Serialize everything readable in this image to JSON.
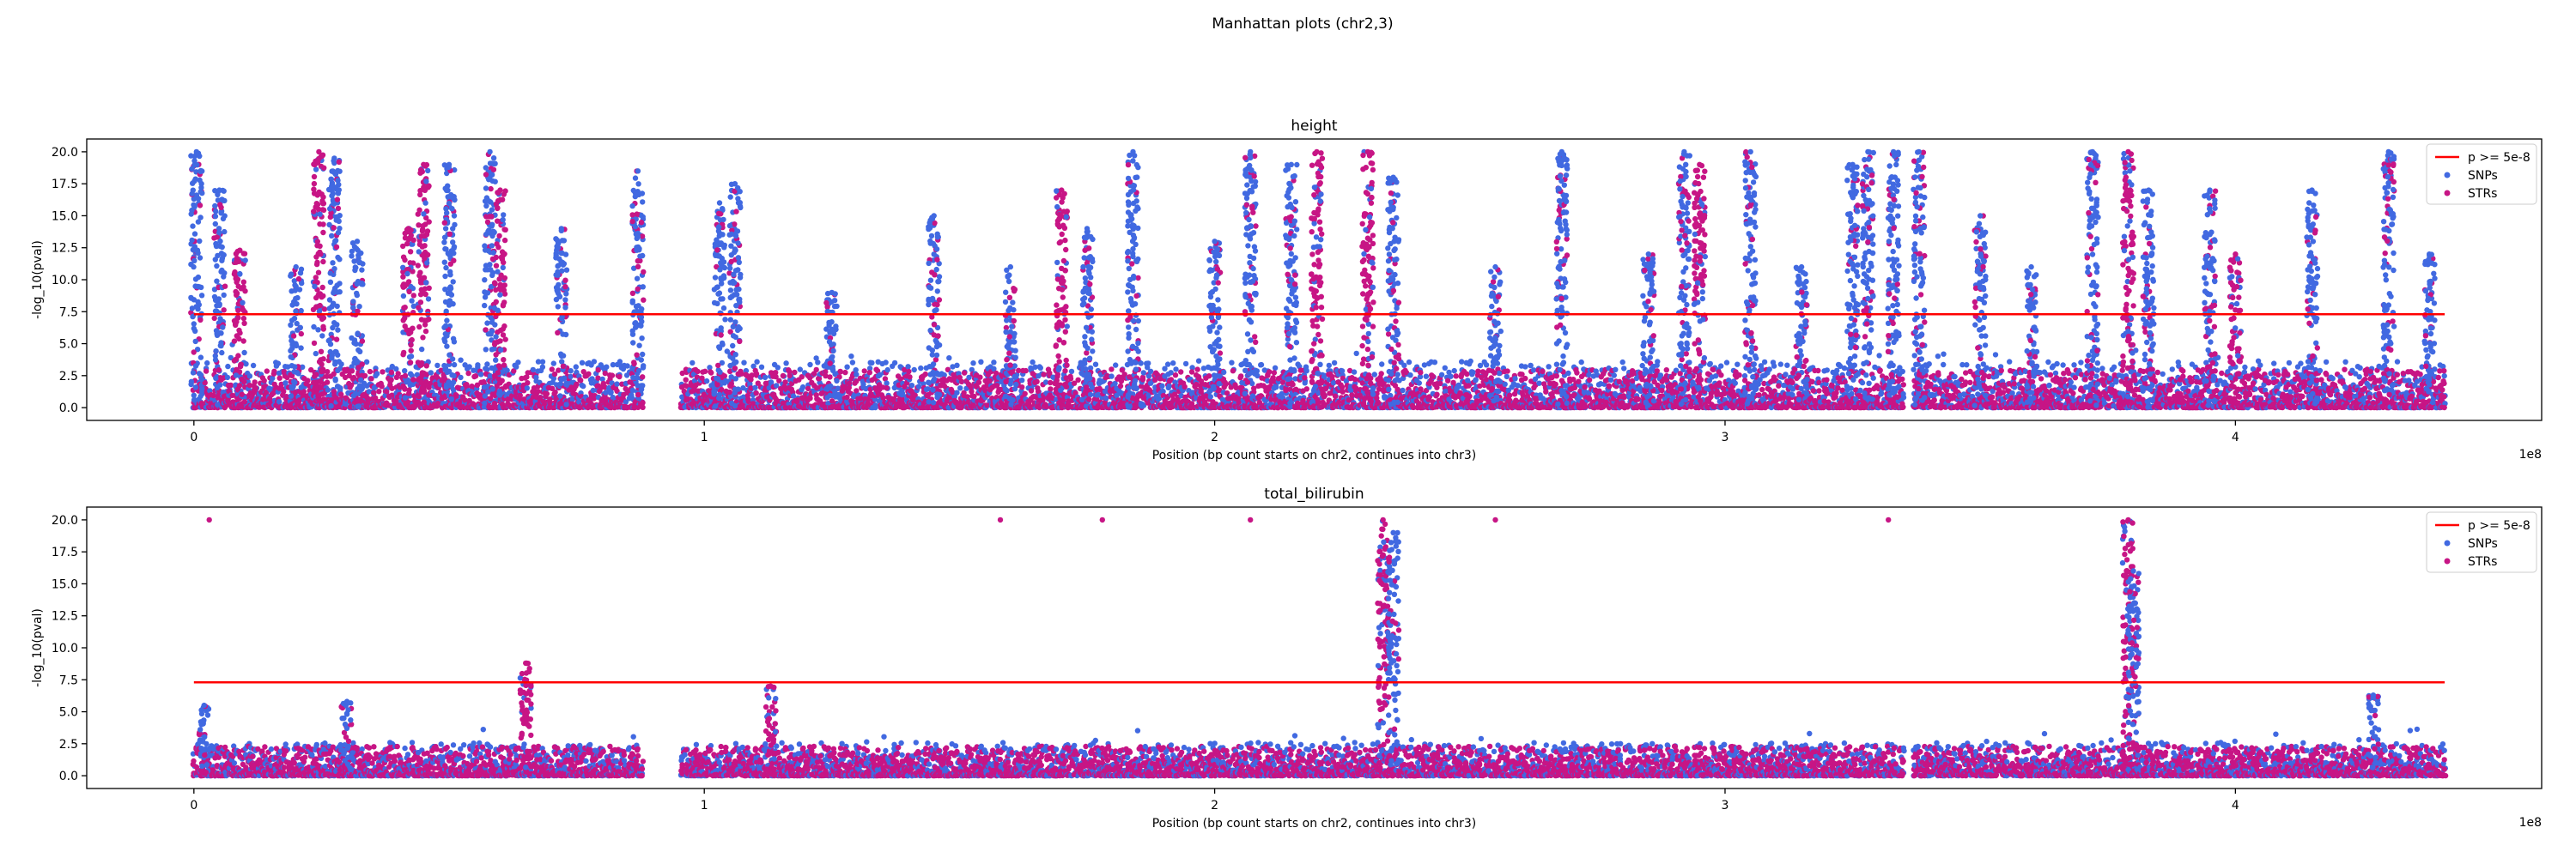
{
  "figure_title": "Manhattan plots (chr2,3)",
  "colors": {
    "snps": "#4169e1",
    "strs": "#c71585",
    "threshold": "#ff0000",
    "axis": "#000000"
  },
  "chart_data": [
    {
      "type": "scatter",
      "title": "height",
      "xlabel": "Position (bp count starts on chr2, continues into chr3)",
      "ylabel": "-log_10(pval)",
      "x_offset_text": "1e8",
      "xlim": [
        -0.21,
        4.6
      ],
      "ylim": [
        -1.0,
        21.0
      ],
      "xticks": [
        0,
        1,
        2,
        3,
        4
      ],
      "xtick_labels": [
        "0",
        "1",
        "2",
        "3",
        "4"
      ],
      "yticks": [
        0.0,
        2.5,
        5.0,
        7.5,
        10.0,
        12.5,
        15.0,
        17.5,
        20.0
      ],
      "ytick_labels": [
        "0.0",
        "2.5",
        "5.0",
        "7.5",
        "10.0",
        "12.5",
        "15.0",
        "17.5",
        "20.0"
      ],
      "threshold": 7.3,
      "gaps": [
        [
          0.88,
          0.955
        ],
        [
          3.35,
          3.37
        ]
      ],
      "x_end": 4.41,
      "legend": {
        "placement": "top-right",
        "entries": [
          "p >= 5e-8",
          "SNPs",
          "STRs"
        ]
      },
      "peaks": [
        {
          "x": 0.005,
          "height": 20,
          "series": "SNPs"
        },
        {
          "x": 0.05,
          "height": 17,
          "series": "SNPs"
        },
        {
          "x": 0.09,
          "height": 12.3,
          "series": "STRs"
        },
        {
          "x": 0.2,
          "height": 11,
          "series": "SNPs"
        },
        {
          "x": 0.245,
          "height": 20,
          "series": "STRs"
        },
        {
          "x": 0.275,
          "height": 19.5,
          "series": "SNPs"
        },
        {
          "x": 0.32,
          "height": 13,
          "series": "SNPs"
        },
        {
          "x": 0.42,
          "height": 14,
          "series": "STRs"
        },
        {
          "x": 0.45,
          "height": 19,
          "series": "STRs"
        },
        {
          "x": 0.5,
          "height": 19,
          "series": "SNPs"
        },
        {
          "x": 0.58,
          "height": 20,
          "series": "SNPs"
        },
        {
          "x": 0.6,
          "height": 17,
          "series": "STRs"
        },
        {
          "x": 0.72,
          "height": 14,
          "series": "SNPs"
        },
        {
          "x": 0.87,
          "height": 18.5,
          "series": "SNPs"
        },
        {
          "x": 1.03,
          "height": 16,
          "series": "SNPs"
        },
        {
          "x": 1.06,
          "height": 17.5,
          "series": "SNPs"
        },
        {
          "x": 1.25,
          "height": 9,
          "series": "SNPs"
        },
        {
          "x": 1.45,
          "height": 15,
          "series": "SNPs"
        },
        {
          "x": 1.6,
          "height": 11,
          "series": "SNPs"
        },
        {
          "x": 1.7,
          "height": 17,
          "series": "STRs"
        },
        {
          "x": 1.75,
          "height": 14,
          "series": "SNPs"
        },
        {
          "x": 1.84,
          "height": 20,
          "series": "SNPs"
        },
        {
          "x": 2.0,
          "height": 13,
          "series": "SNPs"
        },
        {
          "x": 2.07,
          "height": 20,
          "series": "SNPs"
        },
        {
          "x": 2.15,
          "height": 19,
          "series": "SNPs"
        },
        {
          "x": 2.2,
          "height": 20,
          "series": "STRs"
        },
        {
          "x": 2.3,
          "height": 20,
          "series": "STRs"
        },
        {
          "x": 2.35,
          "height": 18,
          "series": "SNPs"
        },
        {
          "x": 2.55,
          "height": 11,
          "series": "SNPs"
        },
        {
          "x": 2.68,
          "height": 20,
          "series": "SNPs"
        },
        {
          "x": 2.85,
          "height": 12,
          "series": "SNPs"
        },
        {
          "x": 2.92,
          "height": 20,
          "series": "SNPs"
        },
        {
          "x": 2.95,
          "height": 19,
          "series": "STRs"
        },
        {
          "x": 3.05,
          "height": 20,
          "series": "SNPs"
        },
        {
          "x": 3.15,
          "height": 11,
          "series": "SNPs"
        },
        {
          "x": 3.25,
          "height": 19,
          "series": "SNPs"
        },
        {
          "x": 3.28,
          "height": 20,
          "series": "SNPs"
        },
        {
          "x": 3.33,
          "height": 20,
          "series": "SNPs"
        },
        {
          "x": 3.38,
          "height": 20,
          "series": "SNPs"
        },
        {
          "x": 3.5,
          "height": 15,
          "series": "SNPs"
        },
        {
          "x": 3.6,
          "height": 11,
          "series": "SNPs"
        },
        {
          "x": 3.72,
          "height": 20,
          "series": "SNPs"
        },
        {
          "x": 3.79,
          "height": 20,
          "series": "STRs"
        },
        {
          "x": 3.83,
          "height": 17,
          "series": "SNPs"
        },
        {
          "x": 3.95,
          "height": 17,
          "series": "SNPs"
        },
        {
          "x": 4.0,
          "height": 12,
          "series": "STRs"
        },
        {
          "x": 4.15,
          "height": 17,
          "series": "SNPs"
        },
        {
          "x": 4.3,
          "height": 20,
          "series": "SNPs"
        },
        {
          "x": 4.38,
          "height": 12,
          "series": "SNPs"
        }
      ]
    },
    {
      "type": "scatter",
      "title": "total_bilirubin",
      "xlabel": "Position (bp count starts on chr2, continues into chr3)",
      "ylabel": "-log_10(pval)",
      "x_offset_text": "1e8",
      "xlim": [
        -0.21,
        4.6
      ],
      "ylim": [
        -1.0,
        21.0
      ],
      "xticks": [
        0,
        1,
        2,
        3,
        4
      ],
      "xtick_labels": [
        "0",
        "1",
        "2",
        "3",
        "4"
      ],
      "yticks": [
        0.0,
        2.5,
        5.0,
        7.5,
        10.0,
        12.5,
        15.0,
        17.5,
        20.0
      ],
      "ytick_labels": [
        "0.0",
        "2.5",
        "5.0",
        "7.5",
        "10.0",
        "12.5",
        "15.0",
        "17.5",
        "20.0"
      ],
      "threshold": 7.3,
      "gaps": [
        [
          0.88,
          0.955
        ],
        [
          3.35,
          3.37
        ]
      ],
      "x_end": 4.41,
      "legend": {
        "placement": "top-right",
        "entries": [
          "p >= 5e-8",
          "SNPs",
          "STRs"
        ]
      },
      "peaks": [
        {
          "x": 0.02,
          "height": 5.5,
          "series": "SNPs"
        },
        {
          "x": 0.3,
          "height": 5.8,
          "series": "SNPs"
        },
        {
          "x": 0.65,
          "height": 8.8,
          "series": "STRs"
        },
        {
          "x": 1.13,
          "height": 7,
          "series": "STRs"
        },
        {
          "x": 2.33,
          "height": 20,
          "series": "STRs"
        },
        {
          "x": 2.35,
          "height": 19,
          "series": "SNPs"
        },
        {
          "x": 3.79,
          "height": 20,
          "series": "STRs"
        },
        {
          "x": 3.8,
          "height": 16,
          "series": "SNPs"
        },
        {
          "x": 4.27,
          "height": 6.3,
          "series": "SNPs"
        }
      ],
      "outliers": [
        {
          "x": 0.03,
          "y": 20,
          "series": "STRs"
        },
        {
          "x": 1.58,
          "y": 20,
          "series": "STRs"
        },
        {
          "x": 1.78,
          "y": 20,
          "series": "STRs"
        },
        {
          "x": 2.07,
          "y": 20,
          "series": "STRs"
        },
        {
          "x": 2.55,
          "y": 20,
          "series": "STRs"
        },
        {
          "x": 3.32,
          "y": 20,
          "series": "STRs"
        }
      ]
    }
  ]
}
